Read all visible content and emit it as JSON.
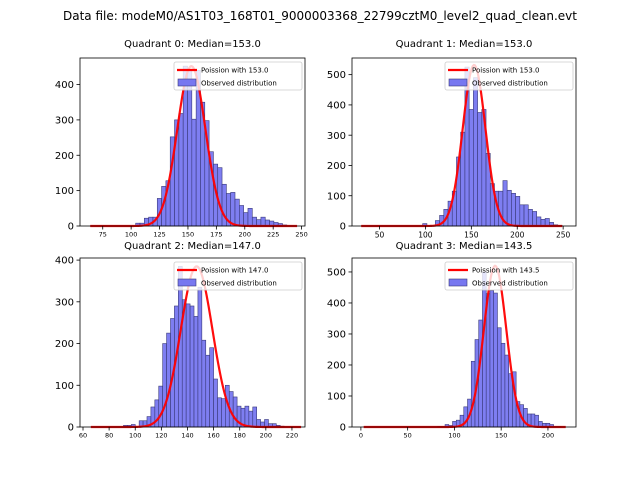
{
  "figure_title": "Data file: modeM0/AS1T03_168T01_9000003368_22799cztM0_level2_quad_clean.evt",
  "colors": {
    "bar_fill": "#7777f0",
    "bar_edge": "#3a3a7a",
    "fit_line": "#ff0000"
  },
  "chart_data": [
    {
      "type": "bar",
      "title": "Quadrant 0: Median=153.0",
      "legend": [
        "Poission with 153.0",
        "Observed distribution"
      ],
      "legend_position": "top-right",
      "xlim": [
        55,
        253
      ],
      "ylim": [
        0,
        475
      ],
      "xticks": [
        75,
        100,
        125,
        150,
        175,
        200,
        225,
        250
      ],
      "yticks": [
        0,
        100,
        200,
        300,
        400
      ],
      "poisson_mean": 153.0,
      "poisson_peak": 452,
      "x_range_curve": [
        64,
        246
      ],
      "bin_width": 3.8,
      "bin_start": 104,
      "values": [
        8,
        8,
        22,
        25,
        25,
        78,
        112,
        128,
        252,
        300,
        318,
        452,
        440,
        302,
        440,
        350,
        298,
        210,
        175,
        165,
        118,
        92,
        95,
        76,
        58,
        38,
        50,
        25,
        18,
        25,
        17,
        14,
        10,
        7,
        3
      ]
    },
    {
      "type": "bar",
      "title": "Quadrant 1: Median=153.0",
      "legend": [
        "Poission with 153.0",
        "Observed distribution"
      ],
      "legend_position": "top-right",
      "xlim": [
        20,
        264
      ],
      "ylim": [
        0,
        555
      ],
      "xticks": [
        50,
        100,
        150,
        200,
        250
      ],
      "yticks": [
        0,
        100,
        200,
        300,
        400,
        500
      ],
      "poisson_mean": 153.0,
      "poisson_peak": 532,
      "x_range_curve": [
        30,
        249
      ],
      "bin_width": 4.6,
      "bin_start": 97,
      "values": [
        8,
        0,
        0,
        18,
        35,
        55,
        82,
        115,
        228,
        310,
        525,
        385,
        490,
        375,
        385,
        240,
        140,
        115,
        115,
        150,
        118,
        108,
        98,
        70,
        70,
        55,
        48,
        30,
        22,
        25,
        12,
        4,
        2
      ]
    },
    {
      "type": "bar",
      "title": "Quadrant 2: Median=147.0",
      "legend": [
        "Poission with 147.0",
        "Observed distribution"
      ],
      "legend_position": "top-right",
      "xlim": [
        57.7,
        230
      ],
      "ylim": [
        0,
        405
      ],
      "xticks": [
        60,
        80,
        100,
        120,
        140,
        160,
        180,
        200,
        220
      ],
      "yticks": [
        0,
        100,
        200,
        300,
        400
      ],
      "poisson_mean": 147.0,
      "poisson_peak": 385,
      "x_range_curve": [
        66,
        227
      ],
      "bin_width": 3.0,
      "bin_start": 91,
      "values": [
        4,
        4,
        6,
        0,
        15,
        15,
        25,
        48,
        65,
        98,
        200,
        225,
        260,
        290,
        385,
        305,
        295,
        290,
        265,
        335,
        208,
        172,
        190,
        115,
        70,
        68,
        100,
        85,
        72,
        50,
        45,
        50,
        38,
        48,
        18,
        12,
        18,
        8,
        8,
        4,
        2
      ]
    },
    {
      "type": "bar",
      "title": "Quadrant 3: Median=143.5",
      "legend": [
        "Poission with 143.5",
        "Observed distribution"
      ],
      "legend_position": "top-right",
      "xlim": [
        -9.5,
        230
      ],
      "ylim": [
        0,
        545
      ],
      "xticks": [
        0,
        50,
        100,
        150,
        200
      ],
      "yticks": [
        0,
        100,
        200,
        300,
        400,
        500
      ],
      "poisson_mean": 143.5,
      "poisson_peak": 520,
      "x_range_curve": [
        3,
        219
      ],
      "bin_width": 4.0,
      "bin_start": 82,
      "values": [
        2,
        2,
        8,
        5,
        18,
        22,
        38,
        65,
        90,
        212,
        282,
        345,
        500,
        430,
        440,
        432,
        320,
        270,
        232,
        172,
        178,
        82,
        72,
        60,
        42,
        42,
        38,
        18,
        12,
        12,
        8,
        2,
        2
      ]
    }
  ]
}
